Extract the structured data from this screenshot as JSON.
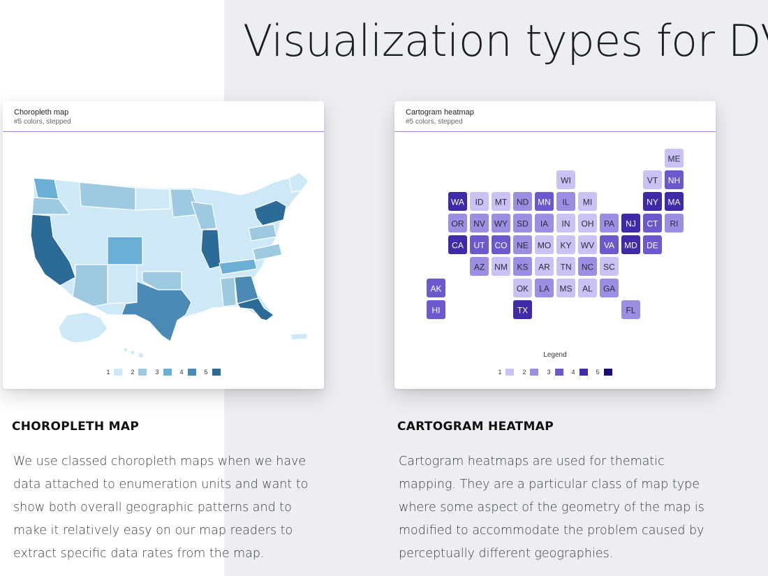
{
  "slide": {
    "title": "Visualization types for DV"
  },
  "choropleth_card": {
    "title": "Choropleth map",
    "subtitle": "#5 colors, stepped",
    "legend": [
      {
        "label": "1",
        "color": "#cde8f6"
      },
      {
        "label": "2",
        "color": "#9ecae1"
      },
      {
        "label": "3",
        "color": "#6baed6"
      },
      {
        "label": "4",
        "color": "#4a8ab5"
      },
      {
        "label": "5",
        "color": "#2c6a98"
      }
    ]
  },
  "cartogram_card": {
    "title": "Cartogram heatmap",
    "subtitle": "#5 colors, stepped",
    "legend_title": "Legend",
    "legend": [
      {
        "label": "1",
        "color": "#c8c3f4"
      },
      {
        "label": "2",
        "color": "#9a8fe3"
      },
      {
        "label": "3",
        "color": "#6a5acd"
      },
      {
        "label": "4",
        "color": "#3f2aa8"
      },
      {
        "label": "5",
        "color": "#1d0b7a"
      }
    ],
    "tiles": [
      {
        "s": "ME",
        "c": 1,
        "row": 0,
        "col": 11
      },
      {
        "s": "WI",
        "c": 1,
        "row": 1,
        "col": 6
      },
      {
        "s": "VT",
        "c": 1,
        "row": 1,
        "col": 10
      },
      {
        "s": "NH",
        "c": 3,
        "row": 1,
        "col": 11
      },
      {
        "s": "WA",
        "c": 4,
        "row": 2,
        "col": 1
      },
      {
        "s": "ID",
        "c": 1,
        "row": 2,
        "col": 2
      },
      {
        "s": "MT",
        "c": 1,
        "row": 2,
        "col": 3
      },
      {
        "s": "ND",
        "c": 2,
        "row": 2,
        "col": 4
      },
      {
        "s": "MN",
        "c": 3,
        "row": 2,
        "col": 5
      },
      {
        "s": "IL",
        "c": 2,
        "row": 2,
        "col": 6
      },
      {
        "s": "MI",
        "c": 1,
        "row": 2,
        "col": 7
      },
      {
        "s": "NY",
        "c": 4,
        "row": 2,
        "col": 10
      },
      {
        "s": "MA",
        "c": 4,
        "row": 2,
        "col": 11
      },
      {
        "s": "OR",
        "c": 2,
        "row": 3,
        "col": 1
      },
      {
        "s": "NV",
        "c": 2,
        "row": 3,
        "col": 2
      },
      {
        "s": "WY",
        "c": 2,
        "row": 3,
        "col": 3
      },
      {
        "s": "SD",
        "c": 2,
        "row": 3,
        "col": 4
      },
      {
        "s": "IA",
        "c": 2,
        "row": 3,
        "col": 5
      },
      {
        "s": "IN",
        "c": 1,
        "row": 3,
        "col": 6
      },
      {
        "s": "OH",
        "c": 1,
        "row": 3,
        "col": 7
      },
      {
        "s": "PA",
        "c": 2,
        "row": 3,
        "col": 8
      },
      {
        "s": "NJ",
        "c": 4,
        "row": 3,
        "col": 9
      },
      {
        "s": "CT",
        "c": 3,
        "row": 3,
        "col": 10
      },
      {
        "s": "RI",
        "c": 2,
        "row": 3,
        "col": 11
      },
      {
        "s": "CA",
        "c": 4,
        "row": 4,
        "col": 1
      },
      {
        "s": "UT",
        "c": 3,
        "row": 4,
        "col": 2
      },
      {
        "s": "CO",
        "c": 3,
        "row": 4,
        "col": 3
      },
      {
        "s": "NE",
        "c": 2,
        "row": 4,
        "col": 4
      },
      {
        "s": "MO",
        "c": 1,
        "row": 4,
        "col": 5
      },
      {
        "s": "KY",
        "c": 1,
        "row": 4,
        "col": 6
      },
      {
        "s": "WV",
        "c": 1,
        "row": 4,
        "col": 7
      },
      {
        "s": "VA",
        "c": 3,
        "row": 4,
        "col": 8
      },
      {
        "s": "MD",
        "c": 4,
        "row": 4,
        "col": 9
      },
      {
        "s": "DE",
        "c": 3,
        "row": 4,
        "col": 10
      },
      {
        "s": "AZ",
        "c": 2,
        "row": 5,
        "col": 2
      },
      {
        "s": "NM",
        "c": 1,
        "row": 5,
        "col": 3
      },
      {
        "s": "KS",
        "c": 2,
        "row": 5,
        "col": 4
      },
      {
        "s": "AR",
        "c": 1,
        "row": 5,
        "col": 5
      },
      {
        "s": "TN",
        "c": 1,
        "row": 5,
        "col": 6
      },
      {
        "s": "NC",
        "c": 2,
        "row": 5,
        "col": 7
      },
      {
        "s": "SC",
        "c": 1,
        "row": 5,
        "col": 8
      },
      {
        "s": "AK",
        "c": 3,
        "row": 6,
        "col": 0
      },
      {
        "s": "OK",
        "c": 1,
        "row": 6,
        "col": 4
      },
      {
        "s": "LA",
        "c": 2,
        "row": 6,
        "col": 5
      },
      {
        "s": "MS",
        "c": 1,
        "row": 6,
        "col": 6
      },
      {
        "s": "AL",
        "c": 1,
        "row": 6,
        "col": 7
      },
      {
        "s": "GA",
        "c": 2,
        "row": 6,
        "col": 8
      },
      {
        "s": "HI",
        "c": 3,
        "row": 7,
        "col": 0
      },
      {
        "s": "TX",
        "c": 4,
        "row": 7,
        "col": 4
      },
      {
        "s": "FL",
        "c": 2,
        "row": 7,
        "col": 9
      }
    ]
  },
  "choropleth_section": {
    "heading": "CHOROPLETH MAP",
    "body": "We use classed choropleth maps when we have data attached to enumeration units and want to show both overall geographic patterns and to make it relatively easy on our map readers to extract specific data rates from the map."
  },
  "cartogram_section": {
    "heading": "CARTOGRAM HEATMAP",
    "body": "Cartogram heatmaps are used for thematic mapping. They are a particular class of map type where some aspect of the geometry of the map is modified to accommodate the problem caused by perceptually different geographies."
  }
}
